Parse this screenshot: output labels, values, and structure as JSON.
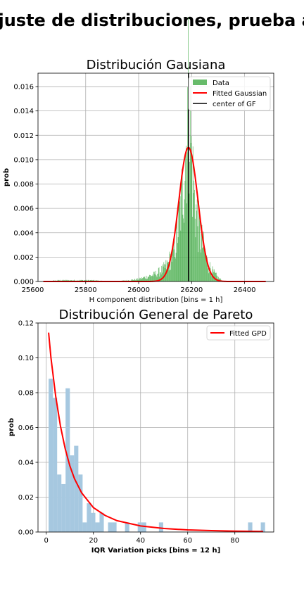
{
  "suptitle": "Ajuste de distribuciones, prueba al",
  "chart_data": [
    {
      "type": "bar",
      "title": "Distribución Gausiana",
      "xlabel": "H component distribution [bins = 1 h]",
      "ylabel": "prob",
      "xlim": [
        25620,
        26510
      ],
      "ylim": [
        0,
        0.0171
      ],
      "xticks": [
        25600,
        25800,
        26000,
        26200,
        26400
      ],
      "xtick_labels": [
        "25600",
        "25800",
        "26000",
        "26200",
        "26400"
      ],
      "yticks": [
        0,
        0.002,
        0.004,
        0.006,
        0.008,
        0.01,
        0.012,
        0.014,
        0.016
      ],
      "ytick_labels": [
        "0.000",
        "0.002",
        "0.004",
        "0.006",
        "0.008",
        "0.010",
        "0.012",
        "0.014",
        "0.016"
      ],
      "grid": true,
      "legend_position": "top-right",
      "colors": {
        "data": "#4caf50",
        "fit": "#ff0000",
        "center": "#000000"
      },
      "series": [
        {
          "name": "Data",
          "kind": "histogram",
          "profile": [
            {
              "x": 25640,
              "y": 0.0
            },
            {
              "x": 25700,
              "y": 0.0001
            },
            {
              "x": 25760,
              "y": 0.0001
            },
            {
              "x": 25820,
              "y": 0.0001
            },
            {
              "x": 25900,
              "y": 0.0
            },
            {
              "x": 25960,
              "y": 0.0001
            },
            {
              "x": 26000,
              "y": 0.0002
            },
            {
              "x": 26030,
              "y": 0.0004
            },
            {
              "x": 26060,
              "y": 0.0006
            },
            {
              "x": 26090,
              "y": 0.001
            },
            {
              "x": 26110,
              "y": 0.0015
            },
            {
              "x": 26130,
              "y": 0.0025
            },
            {
              "x": 26140,
              "y": 0.0035
            },
            {
              "x": 26150,
              "y": 0.005
            },
            {
              "x": 26160,
              "y": 0.0068
            },
            {
              "x": 26170,
              "y": 0.009
            },
            {
              "x": 26180,
              "y": 0.0125
            },
            {
              "x": 26186,
              "y": 0.016
            },
            {
              "x": 26192,
              "y": 0.014
            },
            {
              "x": 26200,
              "y": 0.01
            },
            {
              "x": 26210,
              "y": 0.007
            },
            {
              "x": 26220,
              "y": 0.0055
            },
            {
              "x": 26230,
              "y": 0.004
            },
            {
              "x": 26245,
              "y": 0.0028
            },
            {
              "x": 26260,
              "y": 0.0015
            },
            {
              "x": 26280,
              "y": 0.0008
            },
            {
              "x": 26300,
              "y": 0.0003
            },
            {
              "x": 26320,
              "y": 0.0
            }
          ]
        },
        {
          "name": "Fitted Gaussian",
          "kind": "line",
          "mean": 26188,
          "sd": 36,
          "peak": 0.011,
          "x_range": [
            25640,
            26480
          ]
        },
        {
          "name": "center of GF",
          "kind": "vline",
          "x": 26188
        }
      ]
    },
    {
      "type": "bar",
      "title": "Distribución General de Pareto",
      "xlabel": "IQR Variation picks [bins = 12 h]",
      "ylabel": "prob",
      "xlim": [
        -3.5,
        96.5
      ],
      "ylim": [
        0,
        0.12
      ],
      "xticks": [
        0,
        20,
        40,
        60,
        80
      ],
      "xtick_labels": [
        "0",
        "20",
        "40",
        "60",
        "80"
      ],
      "yticks": [
        0,
        0.02,
        0.04,
        0.06,
        0.08,
        0.1,
        0.12
      ],
      "ytick_labels": [
        "0.00",
        "0.02",
        "0.04",
        "0.06",
        "0.08",
        "0.10",
        "0.12"
      ],
      "grid": true,
      "legend_position": "top-right",
      "colors": {
        "data": "#a6c8e0",
        "fit": "#ff0000"
      },
      "bin_width": 1.82,
      "bins": [
        {
          "x": 1.0,
          "value": 0.088
        },
        {
          "x": 2.8,
          "value": 0.077
        },
        {
          "x": 4.6,
          "value": 0.033
        },
        {
          "x": 6.4,
          "value": 0.0275
        },
        {
          "x": 8.2,
          "value": 0.0825
        },
        {
          "x": 10.0,
          "value": 0.044
        },
        {
          "x": 11.8,
          "value": 0.0495
        },
        {
          "x": 13.6,
          "value": 0.033
        },
        {
          "x": 15.4,
          "value": 0.0055
        },
        {
          "x": 17.2,
          "value": 0.0165
        },
        {
          "x": 19.0,
          "value": 0.011
        },
        {
          "x": 20.8,
          "value": 0.0055
        },
        {
          "x": 22.6,
          "value": 0.011
        },
        {
          "x": 26.2,
          "value": 0.0055
        },
        {
          "x": 28.0,
          "value": 0.0055
        },
        {
          "x": 33.4,
          "value": 0.0055
        },
        {
          "x": 38.8,
          "value": 0.0055
        },
        {
          "x": 40.6,
          "value": 0.0055
        },
        {
          "x": 47.8,
          "value": 0.0055
        },
        {
          "x": 85.6,
          "value": 0.0055
        },
        {
          "x": 91.0,
          "value": 0.0055
        }
      ],
      "series": [
        {
          "name": "Fitted GPD",
          "kind": "line",
          "points": [
            {
              "x": 1,
              "y": 0.1145
            },
            {
              "x": 2,
              "y": 0.1
            },
            {
              "x": 4,
              "y": 0.078
            },
            {
              "x": 6,
              "y": 0.061
            },
            {
              "x": 8,
              "y": 0.048
            },
            {
              "x": 10,
              "y": 0.038
            },
            {
              "x": 12,
              "y": 0.0305
            },
            {
              "x": 15,
              "y": 0.0225
            },
            {
              "x": 20,
              "y": 0.014
            },
            {
              "x": 25,
              "y": 0.0095
            },
            {
              "x": 30,
              "y": 0.0065
            },
            {
              "x": 40,
              "y": 0.0035
            },
            {
              "x": 50,
              "y": 0.002
            },
            {
              "x": 60,
              "y": 0.0012
            },
            {
              "x": 70,
              "y": 0.0008
            },
            {
              "x": 80,
              "y": 0.0005
            },
            {
              "x": 92,
              "y": 0.0003
            }
          ]
        }
      ]
    }
  ]
}
